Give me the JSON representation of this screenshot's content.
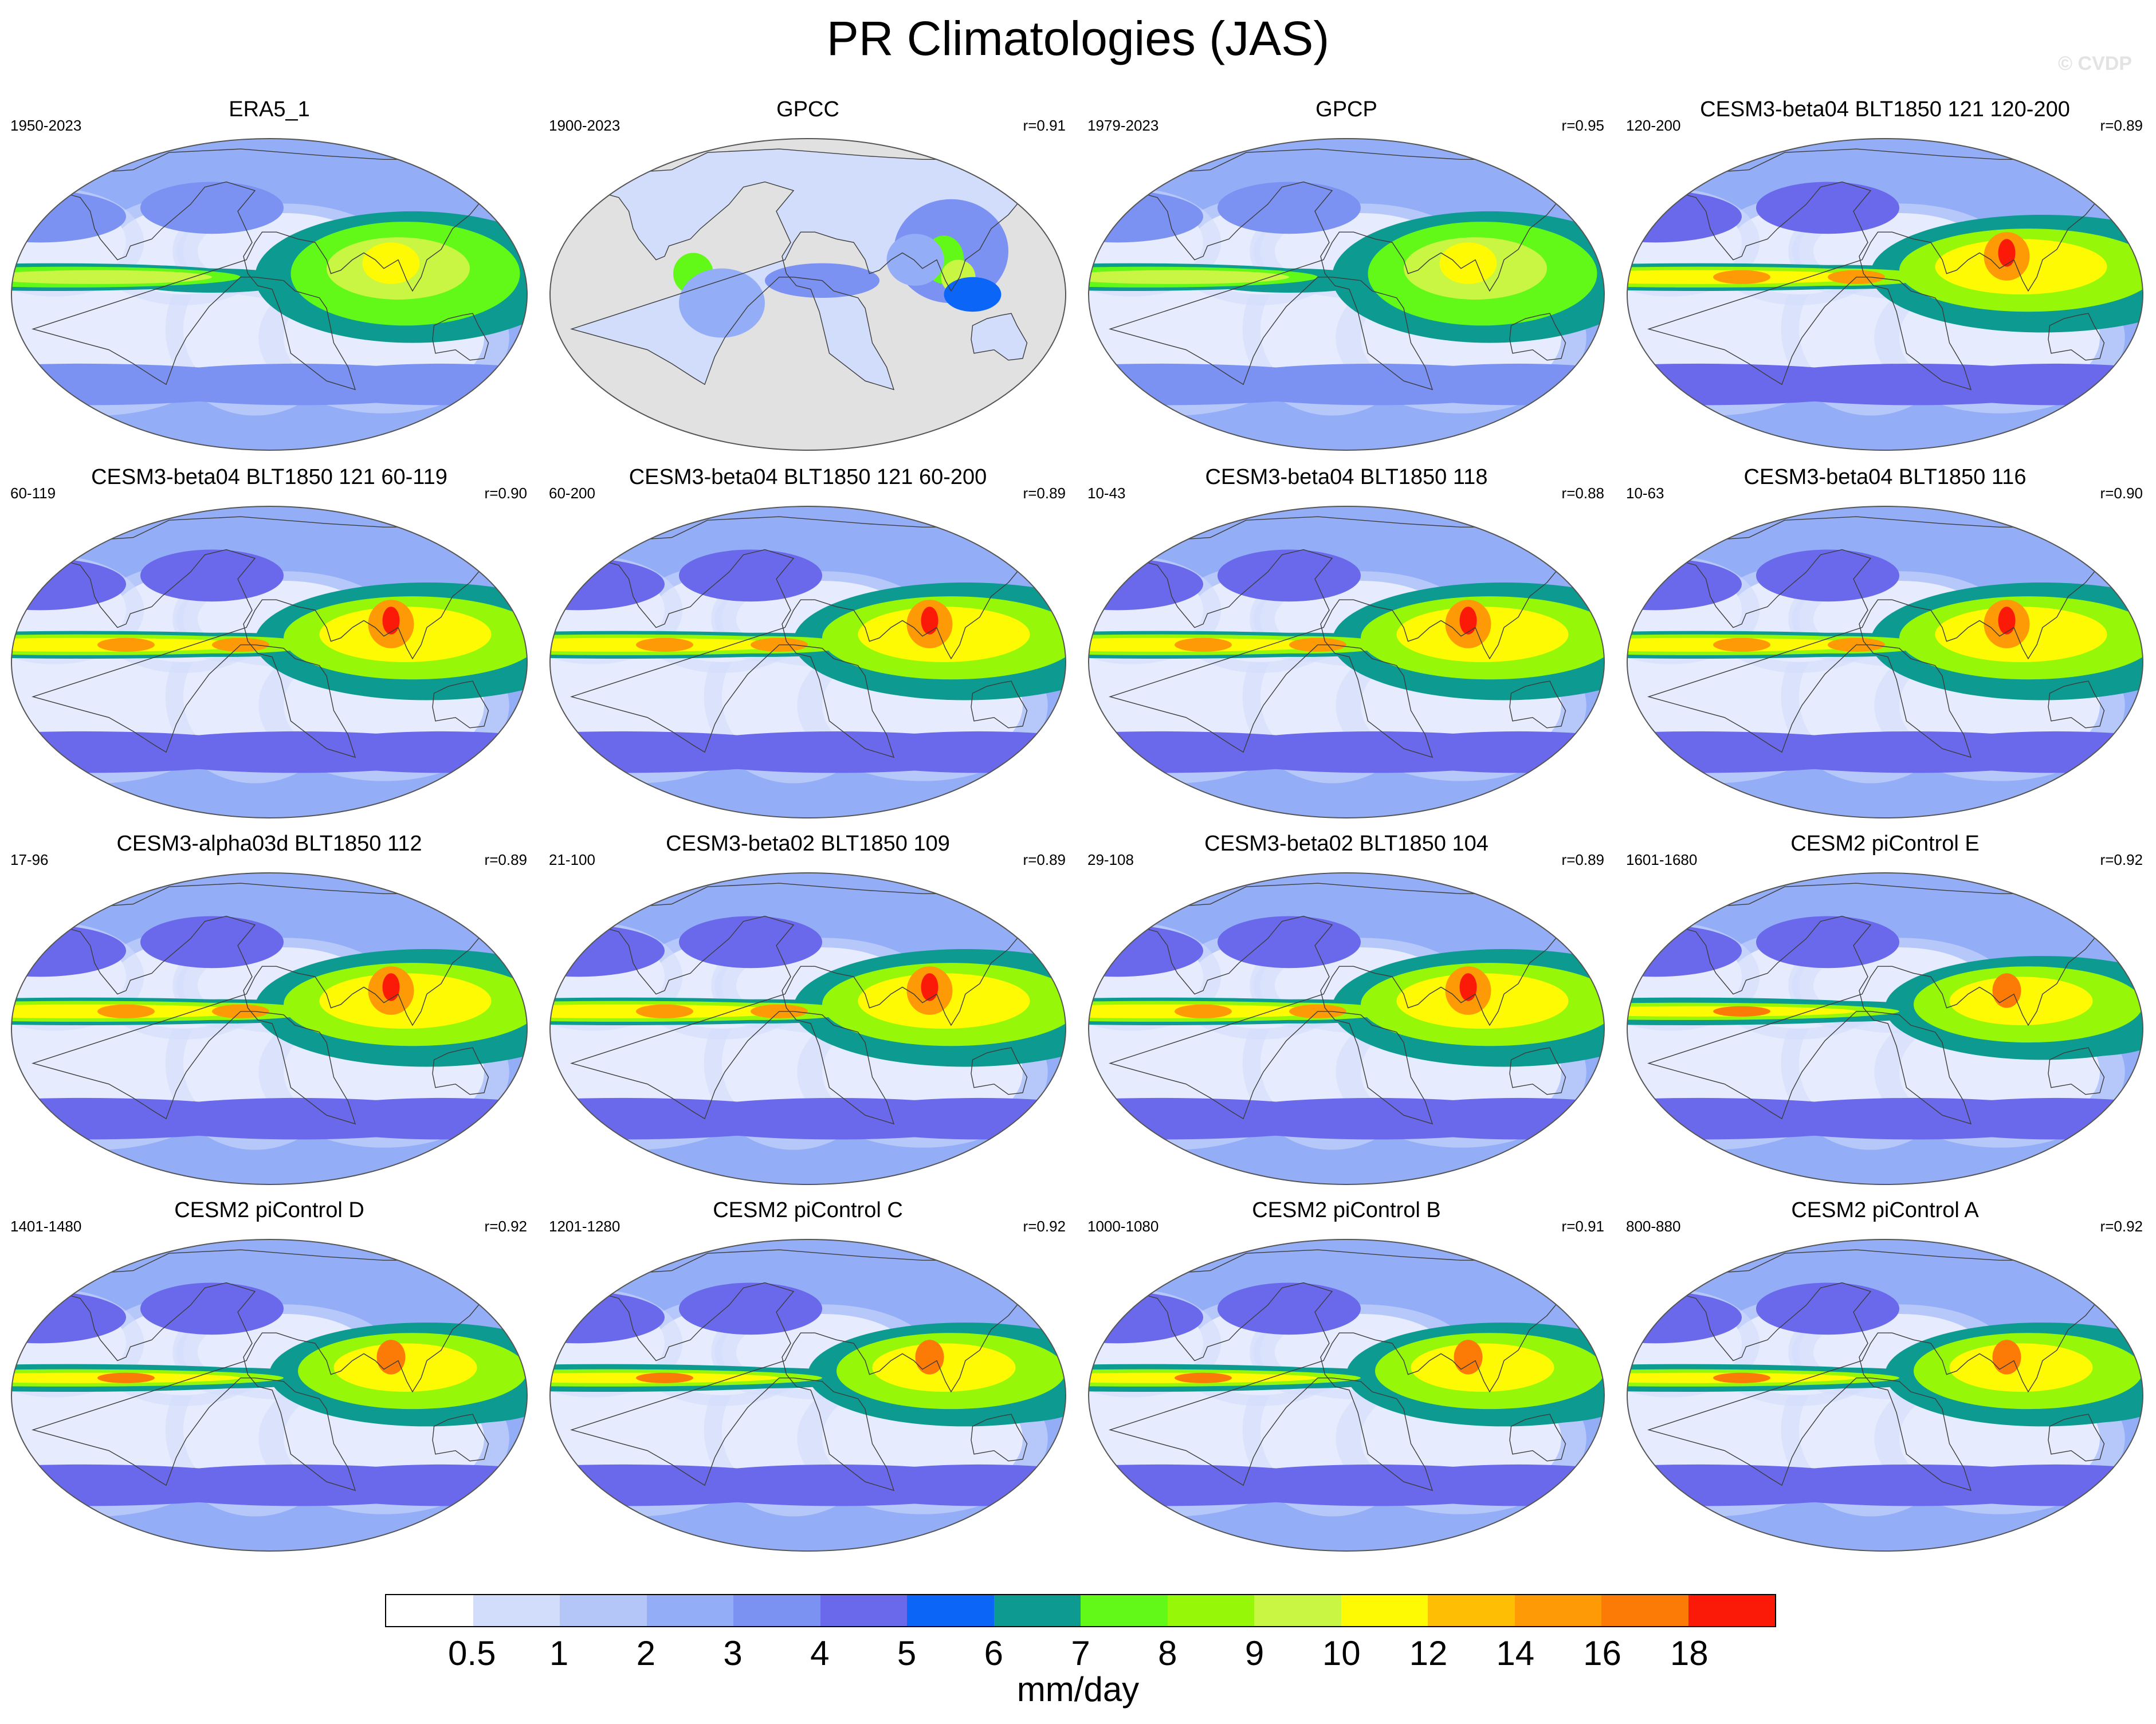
{
  "title": "PR Climatologies (JAS)",
  "watermark": "© CVDP",
  "colorbar": {
    "labels": [
      "0.5",
      "1",
      "2",
      "3",
      "4",
      "5",
      "6",
      "7",
      "8",
      "9",
      "10",
      "12",
      "14",
      "16",
      "18"
    ],
    "colors": [
      "#ffffff",
      "#d2dcfb",
      "#b4c6f8",
      "#94adf7",
      "#7b92f3",
      "#6a69ec",
      "#0b66f8",
      "#0d9a91",
      "#62f817",
      "#97f708",
      "#c9f543",
      "#fdfa04",
      "#fdbe04",
      "#fd9a05",
      "#fc7a06",
      "#fb1a07"
    ],
    "units": "mm/day"
  },
  "panels": [
    {
      "title": "ERA5_1",
      "years": "1950-2023",
      "r": "",
      "style": "obs"
    },
    {
      "title": "GPCC",
      "years": "1900-2023",
      "r": "r=0.91",
      "style": "land"
    },
    {
      "title": "GPCP",
      "years": "1979-2023",
      "r": "r=0.95",
      "style": "obs"
    },
    {
      "title": "CESM3-beta04 BLT1850 121 120-200",
      "years": "120-200",
      "r": "r=0.89",
      "style": "model"
    },
    {
      "title": "CESM3-beta04 BLT1850 121 60-119",
      "years": "60-119",
      "r": "r=0.90",
      "style": "model"
    },
    {
      "title": "CESM3-beta04 BLT1850 121 60-200",
      "years": "60-200",
      "r": "r=0.89",
      "style": "model"
    },
    {
      "title": "CESM3-beta04 BLT1850 118",
      "years": "10-43",
      "r": "r=0.88",
      "style": "model"
    },
    {
      "title": "CESM3-beta04 BLT1850 116",
      "years": "10-63",
      "r": "r=0.90",
      "style": "model"
    },
    {
      "title": "CESM3-alpha03d BLT1850 112",
      "years": "17-96",
      "r": "r=0.89",
      "style": "model"
    },
    {
      "title": "CESM3-beta02 BLT1850 109",
      "years": "21-100",
      "r": "r=0.89",
      "style": "model"
    },
    {
      "title": "CESM3-beta02 BLT1850 104",
      "years": "29-108",
      "r": "r=0.89",
      "style": "model"
    },
    {
      "title": "CESM2 piControl E",
      "years": "1601-1680",
      "r": "r=0.92",
      "style": "cesm2"
    },
    {
      "title": "CESM2 piControl D",
      "years": "1401-1480",
      "r": "r=0.92",
      "style": "cesm2"
    },
    {
      "title": "CESM2 piControl C",
      "years": "1201-1280",
      "r": "r=0.92",
      "style": "cesm2"
    },
    {
      "title": "CESM2 piControl B",
      "years": "1000-1080",
      "r": "r=0.91",
      "style": "cesm2"
    },
    {
      "title": "CESM2 piControl A",
      "years": "800-880",
      "r": "r=0.92",
      "style": "cesm2"
    }
  ]
}
